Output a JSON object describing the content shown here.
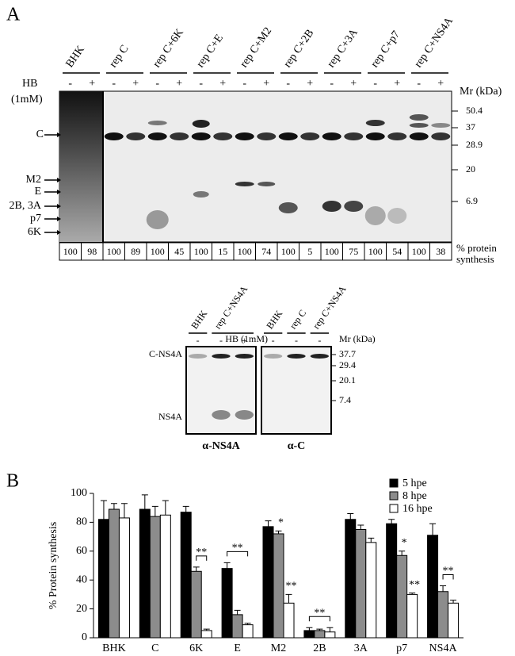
{
  "panel_a": {
    "label": "A",
    "hb_label": "HB",
    "hb_conc": "(1mM)",
    "mr_label": "Mr (kDa)",
    "mr_markers": [
      "50.4",
      "37",
      "28.9",
      "20",
      "6.9"
    ],
    "band_labels": [
      "C",
      "M2",
      "E",
      "2B, 3A",
      "p7",
      "6K"
    ],
    "synthesis_label": "% protein synthesis",
    "lanes": [
      {
        "label": "BHK",
        "hb": [
          "-",
          "+"
        ],
        "percent": [
          100,
          98
        ]
      },
      {
        "label": "rep C",
        "hb": [
          "-",
          "+"
        ],
        "percent": [
          100,
          89
        ]
      },
      {
        "label": "rep C+6K",
        "hb": [
          "-",
          "+"
        ],
        "percent": [
          100,
          45
        ]
      },
      {
        "label": "rep C+E",
        "hb": [
          "-",
          "+"
        ],
        "percent": [
          100,
          15
        ]
      },
      {
        "label": "rep C+M2",
        "hb": [
          "-",
          "+"
        ],
        "percent": [
          100,
          74
        ]
      },
      {
        "label": "rep C+2B",
        "hb": [
          "-",
          "+"
        ],
        "percent": [
          100,
          5
        ]
      },
      {
        "label": "rep C+3A",
        "hb": [
          "-",
          "+"
        ],
        "percent": [
          100,
          75
        ]
      },
      {
        "label": "rep C+p7",
        "hb": [
          "-",
          "+"
        ],
        "percent": [
          100,
          54
        ]
      },
      {
        "label": "rep C+NS4A",
        "hb": [
          "-",
          "+"
        ],
        "percent": [
          100,
          38
        ]
      }
    ]
  },
  "panel_a2": {
    "hb_label": "HB (1mM)",
    "mr_label": "Mr (kDa)",
    "mr_markers": [
      "37.7",
      "29.4",
      "20.1",
      "7.4"
    ],
    "band_labels": [
      "C-NS4A",
      "NS4A"
    ],
    "blots": [
      {
        "antibody": "α-NS4A",
        "lanes": [
          {
            "label": "BHK",
            "hb": [
              "-"
            ]
          },
          {
            "label": "rep C+NS4A",
            "hb": [
              "-",
              "+"
            ]
          }
        ]
      },
      {
        "antibody": "α-C",
        "lanes": [
          {
            "label": "BHK",
            "hb": [
              "-"
            ]
          },
          {
            "label": "rep C",
            "hb": [
              "-"
            ]
          },
          {
            "label": "rep C+NS4A",
            "hb": [
              "-"
            ]
          }
        ]
      }
    ]
  },
  "chart_data": {
    "type": "bar",
    "panel_label": "B",
    "y_label": "% Protein synthesis",
    "categories": [
      "BHK",
      "C",
      "6K",
      "E",
      "M2",
      "2B",
      "3A",
      "p7",
      "NS4A"
    ],
    "series": [
      {
        "name": "5  hpe",
        "color": "#000000",
        "values": [
          82,
          89,
          87,
          48,
          77,
          5,
          82,
          79,
          71
        ],
        "errors": [
          13,
          10,
          4,
          4,
          4,
          2,
          4,
          3,
          8
        ]
      },
      {
        "name": "8  hpe",
        "color": "#8c8c8c",
        "values": [
          89,
          84,
          46,
          16,
          72,
          5,
          75,
          57,
          32
        ],
        "errors": [
          4,
          7,
          3,
          3,
          2,
          1,
          3,
          3,
          4
        ]
      },
      {
        "name": "16 hpe",
        "color": "#ffffff",
        "values": [
          83,
          85,
          5,
          9,
          24,
          4,
          66,
          30,
          24
        ],
        "errors": [
          10,
          10,
          1,
          1,
          6,
          3,
          3,
          1,
          2
        ]
      }
    ],
    "ylim": [
      0,
      100
    ],
    "yticks": [
      0,
      20,
      40,
      60,
      80,
      100
    ],
    "legend": "top-right",
    "annotations": [
      {
        "text": "**",
        "bracket": true
      },
      {
        "text": "**",
        "bracket": true
      },
      {
        "text": "*",
        "bracket": false
      },
      {
        "text": "**",
        "bracket": false
      },
      {
        "text": "**",
        "bracket": true
      },
      {
        "text": "*",
        "bracket": false
      },
      {
        "text": "**",
        "bracket": false
      },
      {
        "text": "**",
        "bracket": true
      }
    ]
  }
}
